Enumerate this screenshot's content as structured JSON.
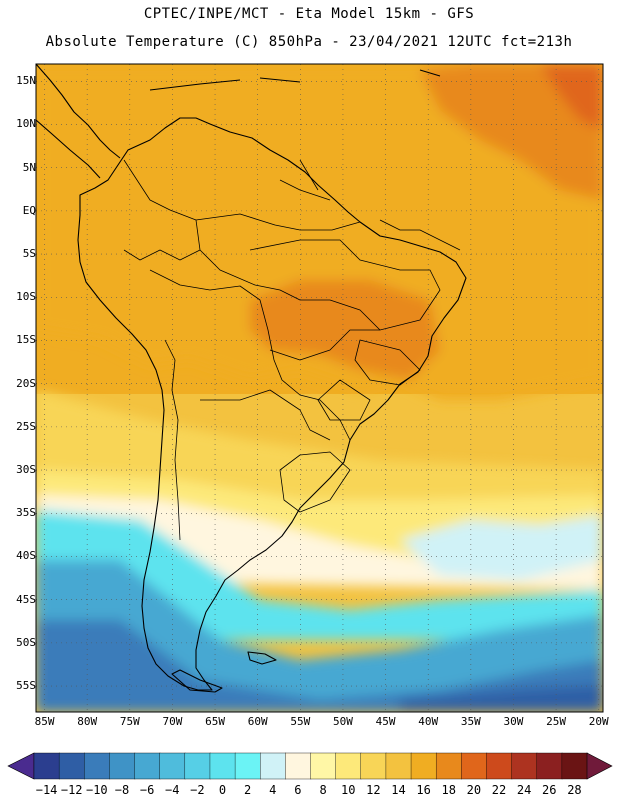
{
  "header": {
    "line1": "CPTEC/INPE/MCT -  Eta Model 15km - GFS",
    "line2": "Absolute Temperature (C) 850hPa - 23/04/2021 12UTC fct=213h"
  },
  "map": {
    "lat_ticks": [
      {
        "label": "15N",
        "lat": 15
      },
      {
        "label": "10N",
        "lat": 10
      },
      {
        "label": "5N",
        "lat": 5
      },
      {
        "label": "EQ",
        "lat": 0
      },
      {
        "label": "5S",
        "lat": -5
      },
      {
        "label": "10S",
        "lat": -10
      },
      {
        "label": "15S",
        "lat": -15
      },
      {
        "label": "20S",
        "lat": -20
      },
      {
        "label": "25S",
        "lat": -25
      },
      {
        "label": "30S",
        "lat": -30
      },
      {
        "label": "35S",
        "lat": -35
      },
      {
        "label": "40S",
        "lat": -40
      },
      {
        "label": "45S",
        "lat": -45
      },
      {
        "label": "50S",
        "lat": -50
      },
      {
        "label": "55S",
        "lat": -55
      }
    ],
    "lon_ticks": [
      {
        "label": "85W",
        "lon": -85
      },
      {
        "label": "80W",
        "lon": -80
      },
      {
        "label": "75W",
        "lon": -75
      },
      {
        "label": "70W",
        "lon": -70
      },
      {
        "label": "65W",
        "lon": -65
      },
      {
        "label": "60W",
        "lon": -60
      },
      {
        "label": "55W",
        "lon": -55
      },
      {
        "label": "50W",
        "lon": -50
      },
      {
        "label": "45W",
        "lon": -45
      },
      {
        "label": "40W",
        "lon": -40
      },
      {
        "label": "35W",
        "lon": -35
      },
      {
        "label": "30W",
        "lon": -30
      },
      {
        "label": "25W",
        "lon": -25
      },
      {
        "label": "20W",
        "lon": -20
      }
    ],
    "extent": {
      "lon_min": -86,
      "lon_max": -19.5,
      "lat_min": -58,
      "lat_max": 17
    }
  },
  "colorbar": {
    "labels": [
      "-14",
      "-12",
      "-10",
      "-8",
      "-6",
      "-4",
      "-2",
      "0",
      "2",
      "4",
      "6",
      "8",
      "10",
      "12",
      "14",
      "16",
      "18",
      "20",
      "22",
      "24",
      "26",
      "28"
    ],
    "colors": [
      "#2b3e8f",
      "#2f5ea5",
      "#3a7cba",
      "#3f93c6",
      "#47a8d2",
      "#4fbcdc",
      "#56cfe6",
      "#5de3ee",
      "#6bf3f5",
      "#d0f2f7",
      "#fff6df",
      "#fff7a6",
      "#fde97a",
      "#f8d557",
      "#f3c23f",
      "#f0ad22",
      "#e8891c",
      "#e0661b",
      "#cd4a1c",
      "#ad3320",
      "#8b2020",
      "#6a1414"
    ],
    "arrow_left": "#4a2b8f",
    "arrow_right": "#701a3a"
  },
  "colors": {
    "ocean_south": "#3f93c6",
    "continent_warm": "#f0ad22"
  }
}
